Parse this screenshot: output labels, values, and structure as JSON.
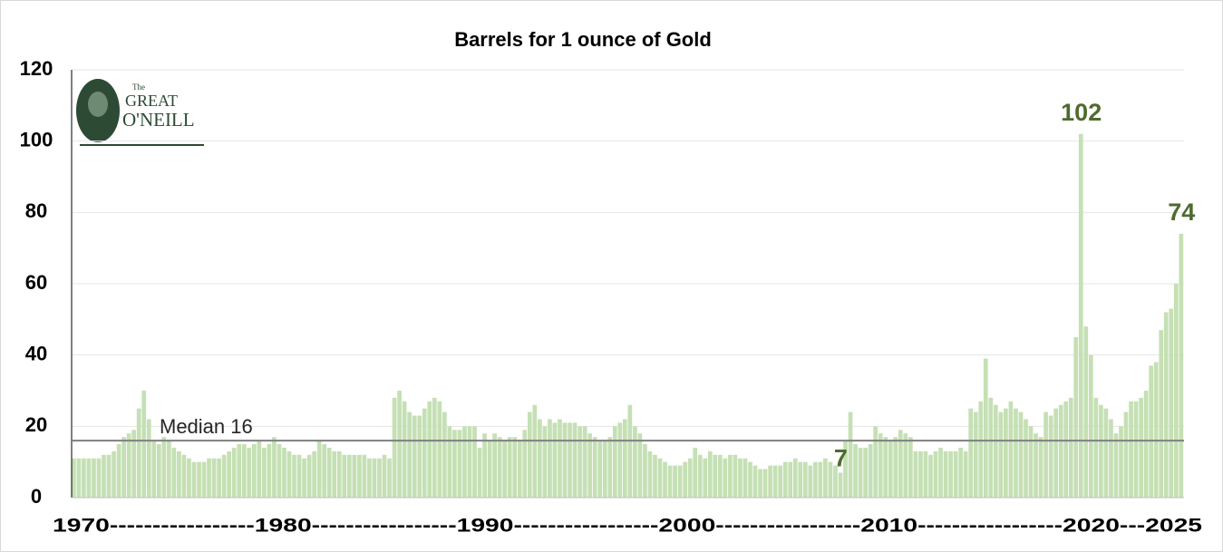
{
  "chart_data": {
    "type": "bar",
    "title": "Barrels for 1 ounce of Gold",
    "x_axis_text": "1970-----------------1980-----------------1990-----------------2000-----------------2010-----------------2020---2025",
    "logo": {
      "lines": [
        "The",
        "GREAT",
        "O'NEILL"
      ]
    },
    "median": 16,
    "median_label": "Median 16",
    "color": "#c5e0b4",
    "label_color": "#4e6b2e",
    "median_color": "#7f7f7f",
    "xlim": [
      1970,
      2025.5
    ],
    "ylim": [
      0,
      120
    ],
    "yticks": [
      0,
      20,
      40,
      60,
      80,
      100,
      120
    ],
    "grid": true,
    "x": [
      1970,
      1970.25,
      1970.5,
      1970.75,
      1971,
      1971.25,
      1971.5,
      1971.75,
      1972,
      1972.25,
      1972.5,
      1972.75,
      1973,
      1973.25,
      1973.5,
      1973.75,
      1974,
      1974.25,
      1974.5,
      1974.75,
      1975,
      1975.25,
      1975.5,
      1975.75,
      1976,
      1976.25,
      1976.5,
      1976.75,
      1977,
      1977.25,
      1977.5,
      1977.75,
      1978,
      1978.25,
      1978.5,
      1978.75,
      1979,
      1979.25,
      1979.5,
      1979.75,
      1980,
      1980.25,
      1980.5,
      1980.75,
      1981,
      1981.25,
      1981.5,
      1981.75,
      1982,
      1982.25,
      1982.5,
      1982.75,
      1983,
      1983.25,
      1983.5,
      1983.75,
      1984,
      1984.25,
      1984.5,
      1984.75,
      1985,
      1985.25,
      1985.5,
      1985.75,
      1986,
      1986.25,
      1986.5,
      1986.75,
      1987,
      1987.25,
      1987.5,
      1987.75,
      1988,
      1988.25,
      1988.5,
      1988.75,
      1989,
      1989.25,
      1989.5,
      1989.75,
      1990,
      1990.25,
      1990.5,
      1990.75,
      1991,
      1991.25,
      1991.5,
      1991.75,
      1992,
      1992.25,
      1992.5,
      1992.75,
      1993,
      1993.25,
      1993.5,
      1993.75,
      1994,
      1994.25,
      1994.5,
      1994.75,
      1995,
      1995.25,
      1995.5,
      1995.75,
      1996,
      1996.25,
      1996.5,
      1996.75,
      1997,
      1997.25,
      1997.5,
      1997.75,
      1998,
      1998.25,
      1998.5,
      1998.75,
      1999,
      1999.25,
      1999.5,
      1999.75,
      2000,
      2000.25,
      2000.5,
      2000.75,
      2001,
      2001.25,
      2001.5,
      2001.75,
      2002,
      2002.25,
      2002.5,
      2002.75,
      2003,
      2003.25,
      2003.5,
      2003.75,
      2004,
      2004.25,
      2004.5,
      2004.75,
      2005,
      2005.25,
      2005.5,
      2005.75,
      2006,
      2006.25,
      2006.5,
      2006.75,
      2007,
      2007.25,
      2007.5,
      2007.75,
      2008,
      2008.25,
      2008.5,
      2008.75,
      2009,
      2009.25,
      2009.5,
      2009.75,
      2010,
      2010.25,
      2010.5,
      2010.75,
      2011,
      2011.25,
      2011.5,
      2011.75,
      2012,
      2012.25,
      2012.5,
      2012.75,
      2013,
      2013.25,
      2013.5,
      2013.75,
      2014,
      2014.25,
      2014.5,
      2014.75,
      2015,
      2015.25,
      2015.5,
      2015.75,
      2016,
      2016.25,
      2016.5,
      2016.75,
      2017,
      2017.25,
      2017.5,
      2017.75,
      2018,
      2018.25,
      2018.5,
      2018.75,
      2019,
      2019.25,
      2019.5,
      2019.75,
      2020,
      2020.25,
      2020.5,
      2020.75,
      2021,
      2021.25,
      2021.5,
      2021.75,
      2022,
      2022.25,
      2022.5,
      2022.75,
      2023,
      2023.25,
      2023.5,
      2023.75,
      2024,
      2024.25,
      2024.5,
      2024.75,
      2025,
      2025.25
    ],
    "values": [
      11,
      11,
      11,
      11,
      11,
      11,
      12,
      12,
      13,
      15,
      17,
      18,
      19,
      25,
      30,
      22,
      16,
      15,
      17,
      16,
      14,
      13,
      12,
      11,
      10,
      10,
      10,
      11,
      11,
      11,
      12,
      13,
      14,
      15,
      15,
      14,
      15,
      16,
      14,
      15,
      17,
      15,
      14,
      13,
      12,
      12,
      11,
      12,
      13,
      16,
      15,
      14,
      13,
      13,
      12,
      12,
      12,
      12,
      12,
      11,
      11,
      11,
      12,
      11,
      28,
      30,
      27,
      24,
      23,
      23,
      25,
      27,
      28,
      27,
      24,
      20,
      19,
      19,
      20,
      20,
      20,
      14,
      18,
      16,
      18,
      17,
      16,
      17,
      17,
      16,
      19,
      24,
      26,
      22,
      20,
      22,
      21,
      22,
      21,
      21,
      21,
      20,
      20,
      18,
      17,
      16,
      16,
      17,
      20,
      21,
      22,
      26,
      20,
      18,
      15,
      13,
      12,
      11,
      10,
      9,
      9,
      9,
      10,
      11,
      14,
      12,
      11,
      13,
      12,
      12,
      11,
      12,
      12,
      11,
      11,
      10,
      9,
      8,
      8,
      9,
      9,
      9,
      10,
      10,
      11,
      10,
      10,
      9,
      10,
      10,
      11,
      10,
      9,
      7,
      16,
      24,
      15,
      14,
      14,
      15,
      20,
      18,
      17,
      16,
      17,
      19,
      18,
      17,
      13,
      13,
      13,
      12,
      13,
      14,
      13,
      13,
      13,
      14,
      13,
      25,
      24,
      27,
      39,
      28,
      26,
      24,
      25,
      27,
      25,
      24,
      22,
      20,
      18,
      17,
      24,
      23,
      25,
      26,
      27,
      28,
      45,
      102,
      48,
      40,
      28,
      26,
      25,
      22,
      18,
      20,
      24,
      27,
      27,
      28,
      30,
      37,
      38,
      47,
      52,
      53,
      60,
      74
    ],
    "value_labels": [
      null,
      null,
      null,
      null,
      null,
      null,
      null,
      null,
      null,
      null,
      null,
      null,
      null,
      null,
      null,
      null,
      null,
      null,
      null,
      null,
      null,
      null,
      null,
      null,
      null,
      null,
      null,
      null,
      null,
      null,
      null,
      null,
      null,
      null,
      null,
      null,
      null,
      null,
      null,
      null,
      null,
      null,
      null,
      null,
      null,
      null,
      null,
      null,
      null,
      null,
      null,
      null,
      null,
      null,
      null,
      null,
      null,
      null,
      null,
      null,
      null,
      null,
      null,
      null,
      null,
      null,
      null,
      null,
      null,
      null,
      null,
      null,
      null,
      null,
      null,
      null,
      null,
      null,
      null,
      null,
      null,
      null,
      null,
      null,
      null,
      null,
      null,
      null,
      null,
      null,
      null,
      null,
      null,
      null,
      null,
      null,
      null,
      null,
      null,
      null,
      null,
      null,
      null,
      null,
      null,
      null,
      null,
      null,
      null,
      null,
      null,
      null,
      null,
      null,
      null,
      null,
      null,
      null,
      null,
      null,
      null,
      null,
      null,
      null,
      null,
      null,
      null,
      null,
      null,
      null,
      null,
      null,
      null,
      null,
      null,
      null,
      null,
      null,
      null,
      null,
      null,
      null,
      null,
      null,
      null,
      null,
      null,
      null,
      null,
      null,
      null,
      null,
      null,
      "7",
      null,
      null,
      null,
      null,
      null,
      null,
      null,
      null,
      null,
      null,
      null,
      null,
      null,
      null,
      null,
      null,
      null,
      null,
      null,
      null,
      null,
      null,
      null,
      null,
      null,
      null,
      null,
      null,
      null,
      null,
      null,
      null,
      null,
      null,
      null,
      null,
      null,
      null,
      null,
      null,
      null,
      null,
      null,
      null,
      null,
      null,
      null,
      "102",
      null,
      null,
      null,
      null,
      null,
      null,
      null,
      null,
      null,
      null,
      null,
      null,
      null,
      null,
      null,
      null,
      null,
      null,
      null,
      "74"
    ]
  }
}
